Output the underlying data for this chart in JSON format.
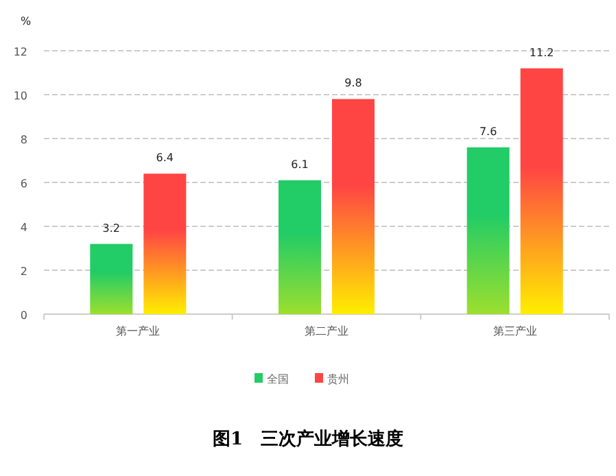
{
  "chart_data": {
    "type": "bar",
    "title": "图1　三次产业增长速度",
    "ylabel": "%",
    "categories": [
      "第一产业",
      "第二产业",
      "第三产业"
    ],
    "series": [
      {
        "name": "全国",
        "color": "#22cc66",
        "values": [
          3.2,
          6.1,
          7.6
        ]
      },
      {
        "name": "贵州",
        "color": "#ff4444",
        "values": [
          6.4,
          9.8,
          11.2
        ]
      }
    ],
    "ylim": [
      0,
      12
    ],
    "yticks": [
      0,
      2,
      4,
      6,
      8,
      10,
      12
    ],
    "grid": "y",
    "legend": "bottom",
    "data_labels": true
  }
}
